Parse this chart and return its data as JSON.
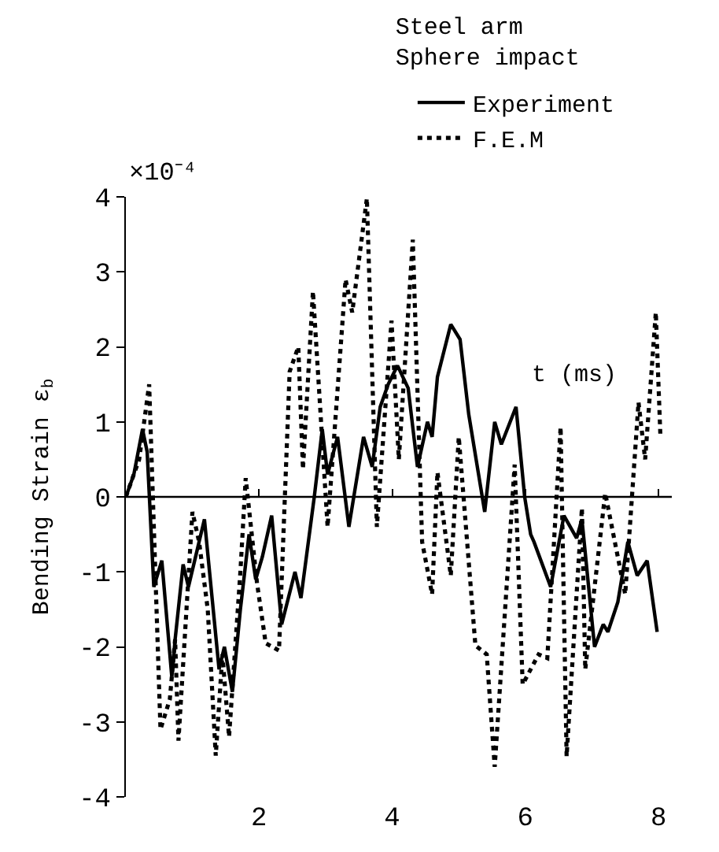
{
  "chart_data": {
    "type": "line",
    "title": "Steel arm",
    "subtitle": "Sphere impact",
    "xlabel": "t (ms)",
    "ylabel": "Bending Strain ε$_{b}$",
    "annotations": [
      "×10⁻⁴"
    ],
    "xlim": [
      0,
      8.2
    ],
    "xticks": [
      2,
      4,
      6,
      8
    ],
    "ylim": [
      -4,
      4
    ],
    "yticks": [
      -4,
      -3,
      -2,
      -1,
      0,
      1,
      2,
      3,
      4
    ],
    "grid": false,
    "ref_lines": [
      {
        "axis": "y",
        "value": 0,
        "color": "#000000",
        "line_style": "solid"
      }
    ],
    "legend": "top right",
    "marker": "none",
    "series": [
      {
        "name": "Experiment",
        "color": "#000000",
        "line_style": "solid",
        "x": [
          0,
          0.12,
          0.25,
          0.32,
          0.42,
          0.54,
          0.69,
          0.74,
          0.86,
          0.94,
          1.18,
          1.4,
          1.48,
          1.6,
          1.72,
          1.85,
          1.95,
          2.05,
          2.19,
          2.34,
          2.54,
          2.63,
          2.83,
          2.95,
          3.03,
          3.18,
          3.35,
          3.57,
          3.7,
          3.82,
          3.94,
          4.08,
          4.24,
          4.38,
          4.53,
          4.6,
          4.68,
          4.88,
          5.02,
          5.15,
          5.39,
          5.54,
          5.64,
          5.86,
          5.99,
          6.08,
          6.13,
          6.38,
          6.58,
          6.77,
          6.85,
          7.04,
          7.17,
          7.24,
          7.39,
          7.54,
          7.68,
          7.83,
          7.98
        ],
        "values": [
          0,
          0.3,
          0.9,
          0.6,
          -1.2,
          -0.85,
          -2.4,
          -1.9,
          -0.9,
          -1.2,
          -0.3,
          -2.3,
          -2.0,
          -2.6,
          -1.5,
          -0.5,
          -1.1,
          -0.8,
          -0.25,
          -1.7,
          -1.0,
          -1.35,
          0,
          0.9,
          0.3,
          0.8,
          -0.4,
          0.8,
          0.4,
          1.2,
          1.5,
          1.75,
          1.45,
          0.4,
          1.0,
          0.8,
          1.6,
          2.3,
          2.1,
          1.1,
          -0.2,
          1.0,
          0.7,
          1.2,
          0,
          -0.5,
          -0.6,
          -1.2,
          -0.25,
          -0.55,
          -0.3,
          -2.0,
          -1.7,
          -1.8,
          -1.4,
          -0.6,
          -1.05,
          -0.85,
          -1.8
        ]
      },
      {
        "name": "F.E.M",
        "color": "#000000",
        "line_style": "dotted",
        "x": [
          0,
          0.2,
          0.35,
          0.52,
          0.66,
          0.74,
          0.79,
          1.0,
          1.1,
          1.23,
          1.35,
          1.45,
          1.55,
          1.72,
          1.8,
          1.97,
          2.1,
          2.3,
          2.46,
          2.59,
          2.66,
          2.81,
          3.03,
          3.3,
          3.4,
          3.62,
          3.77,
          3.99,
          4.1,
          4.31,
          4.45,
          4.6,
          4.68,
          4.88,
          5.0,
          5.25,
          5.42,
          5.54,
          5.84,
          5.96,
          6.2,
          6.33,
          6.53,
          6.62,
          6.85,
          6.9,
          7.2,
          7.5,
          7.7,
          7.8,
          7.96,
          8.03
        ],
        "values": [
          0,
          0.5,
          1.5,
          -3.1,
          -2.7,
          -1.9,
          -3.25,
          -0.2,
          -0.6,
          -1.5,
          -3.45,
          -2.1,
          -3.2,
          -1.0,
          0.25,
          -1.15,
          -1.95,
          -2.05,
          1.67,
          2.0,
          0.37,
          2.74,
          -0.4,
          2.9,
          2.46,
          3.98,
          -0.4,
          2.35,
          0.5,
          3.43,
          -0.6,
          -1.3,
          0.33,
          -1.05,
          0.8,
          -1.98,
          -2.1,
          -3.6,
          0.43,
          -2.5,
          -2.1,
          -2.15,
          0.93,
          -3.46,
          -0.15,
          -2.3,
          0.05,
          -1.3,
          1.26,
          0.5,
          2.46,
          0.78
        ]
      }
    ]
  }
}
